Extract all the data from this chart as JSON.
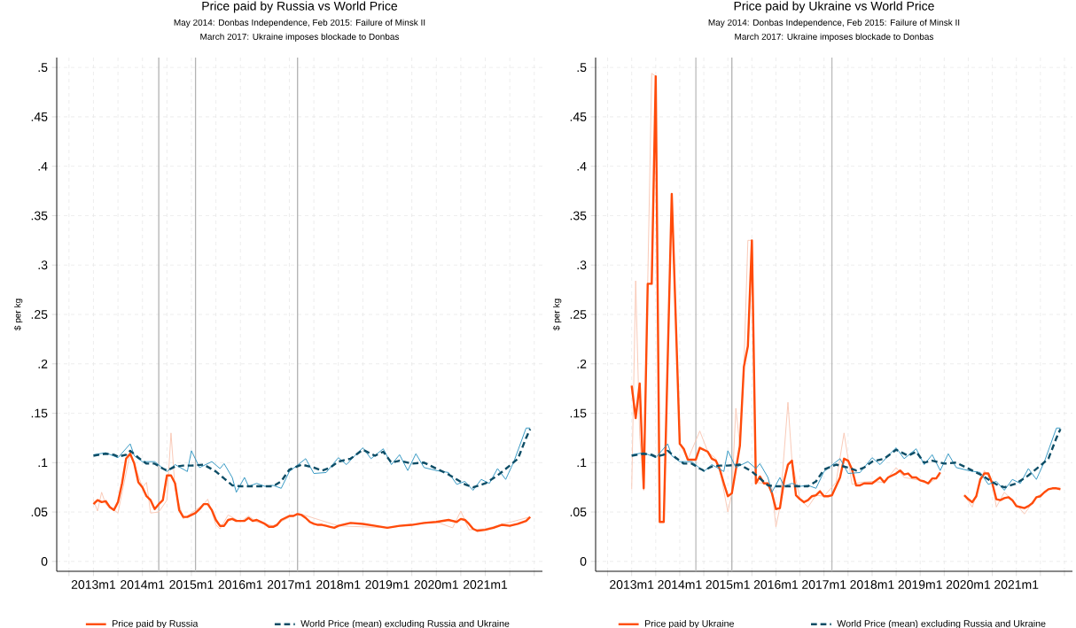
{
  "chart_data": [
    {
      "type": "line",
      "title": "Price paid by Russia vs World Price",
      "subtitle": "May 2014: Donbas Independence, Feb 2015: Failure of Minsk II",
      "annotations": [
        "March 2017: Ukraine imposes blockade to Donbas"
      ],
      "ylabel": "$ per kg",
      "xlim": [
        "2012-04",
        "2022-03"
      ],
      "ylim": [
        -0.01,
        0.51
      ],
      "xticks": [
        {
          "value": "2012-07",
          "label": null
        },
        {
          "value": "2013-01",
          "label": "2013m1"
        },
        {
          "value": "2013-07",
          "label": null
        },
        {
          "value": "2014-01",
          "label": "2014m1"
        },
        {
          "value": "2014-07",
          "label": null
        },
        {
          "value": "2015-01",
          "label": "2015m1"
        },
        {
          "value": "2015-07",
          "label": null
        },
        {
          "value": "2016-01",
          "label": "2016m1"
        },
        {
          "value": "2016-07",
          "label": null
        },
        {
          "value": "2017-01",
          "label": "2017m1"
        },
        {
          "value": "2017-07",
          "label": null
        },
        {
          "value": "2018-01",
          "label": "2018m1"
        },
        {
          "value": "2018-07",
          "label": null
        },
        {
          "value": "2019-01",
          "label": "2019m1"
        },
        {
          "value": "2019-07",
          "label": null
        },
        {
          "value": "2020-01",
          "label": "2020m1"
        },
        {
          "value": "2020-07",
          "label": null
        },
        {
          "value": "2021-01",
          "label": "2021m1"
        },
        {
          "value": "2021-07",
          "label": null
        },
        {
          "value": "2022-01",
          "label": null
        }
      ],
      "yticks": [
        0,
        {
          "value": 0.05,
          "label": ".05"
        },
        {
          "value": 0.1,
          "label": ".1"
        },
        {
          "value": 0.15,
          "label": ".15"
        },
        {
          "value": 0.2,
          "label": ".2"
        },
        {
          "value": 0.25,
          "label": ".25"
        },
        {
          "value": 0.3,
          "label": ".3"
        },
        {
          "value": 0.35,
          "label": ".35"
        },
        {
          "value": 0.4,
          "label": ".4"
        },
        {
          "value": 0.45,
          "label": ".45"
        },
        {
          "value": 0.5,
          "label": ".5"
        }
      ],
      "grid": true,
      "legend": "bottom",
      "ref_lines": [
        {
          "axis": "x",
          "value": "2014-05",
          "color": "#b4b4b4"
        },
        {
          "axis": "x",
          "value": "2015-02",
          "color": "#b4b4b4"
        },
        {
          "axis": "x",
          "value": "2017-03",
          "color": "#b4b4b4"
        }
      ],
      "series": [
        {
          "color": "#f9c6b3",
          "line_style": "solid",
          "x": [
            "2013-01",
            "2013-02",
            "2013-03",
            "2013-04",
            "2013-07",
            "2013-10",
            "2014-01",
            "2014-02",
            "2014-03",
            "2014-05",
            "2014-07",
            "2014-08",
            "2014-09",
            "2014-11",
            "2015-01",
            "2015-04",
            "2015-05",
            "2015-07",
            "2015-08",
            "2015-10",
            "2016-01",
            "2016-03",
            "2016-05",
            "2016-09",
            "2017-03",
            "2018-01",
            "2019-01",
            "2020-01",
            "2020-05",
            "2020-07",
            "2020-09",
            "2021-01",
            "2021-12"
          ],
          "values": [
            0.062,
            0.051,
            0.07,
            0.058,
            0.049,
            0.11,
            0.075,
            0.08,
            0.049,
            0.05,
            0.062,
            0.13,
            0.073,
            0.043,
            0.049,
            0.058,
            0.063,
            0.037,
            0.033,
            0.047,
            0.04,
            0.046,
            0.04,
            0.036,
            0.049,
            0.036,
            0.034,
            0.04,
            0.034,
            0.051,
            0.032,
            0.033,
            0.045
          ]
        },
        {
          "name": "Price paid by Russia",
          "color": "#ff4b0a",
          "line_style": "solid",
          "x": [
            "2013-01",
            "2013-02",
            "2013-03",
            "2013-04",
            "2013-05",
            "2013-06",
            "2013-07",
            "2013-08",
            "2013-09",
            "2013-10",
            "2013-11",
            "2013-12",
            "2014-01",
            "2014-02",
            "2014-03",
            "2014-04",
            "2014-05",
            "2014-06",
            "2014-07",
            "2014-08",
            "2014-09",
            "2014-10",
            "2014-11",
            "2014-12",
            "2015-01",
            "2015-02",
            "2015-03",
            "2015-04",
            "2015-05",
            "2015-06",
            "2015-07",
            "2015-08",
            "2015-09",
            "2015-10",
            "2015-11",
            "2015-12",
            "2016-01",
            "2016-02",
            "2016-03",
            "2016-04",
            "2016-05",
            "2016-06",
            "2016-07",
            "2016-08",
            "2016-09",
            "2016-10",
            "2016-11",
            "2016-12",
            "2017-01",
            "2017-02",
            "2017-03",
            "2017-04",
            "2017-05",
            "2017-06",
            "2017-07",
            "2017-08",
            "2017-09",
            "2017-10",
            "2017-11",
            "2017-12",
            "2018-01",
            "2018-04",
            "2018-07",
            "2018-10",
            "2019-01",
            "2019-04",
            "2019-07",
            "2019-10",
            "2020-01",
            "2020-04",
            "2020-06",
            "2020-07",
            "2020-08",
            "2020-09",
            "2020-10",
            "2020-11",
            "2021-01",
            "2021-03",
            "2021-05",
            "2021-07",
            "2021-09",
            "2021-11",
            "2021-12"
          ],
          "values": [
            0.058,
            0.062,
            0.06,
            0.061,
            0.055,
            0.052,
            0.06,
            0.079,
            0.104,
            0.109,
            0.099,
            0.08,
            0.075,
            0.066,
            0.062,
            0.053,
            0.058,
            0.062,
            0.087,
            0.087,
            0.079,
            0.052,
            0.045,
            0.045,
            0.047,
            0.049,
            0.053,
            0.058,
            0.058,
            0.052,
            0.042,
            0.036,
            0.036,
            0.042,
            0.043,
            0.041,
            0.041,
            0.041,
            0.044,
            0.041,
            0.042,
            0.04,
            0.038,
            0.035,
            0.035,
            0.037,
            0.042,
            0.044,
            0.046,
            0.046,
            0.048,
            0.047,
            0.044,
            0.04,
            0.038,
            0.037,
            0.037,
            0.036,
            0.035,
            0.034,
            0.036,
            0.039,
            0.038,
            0.036,
            0.034,
            0.036,
            0.037,
            0.039,
            0.04,
            0.042,
            0.04,
            0.043,
            0.042,
            0.038,
            0.033,
            0.031,
            0.032,
            0.034,
            0.037,
            0.036,
            0.038,
            0.041,
            0.045
          ]
        },
        {
          "color": "#2a92c0",
          "line_style": "solid",
          "x": [
            "2013-01",
            "2013-04",
            "2013-07",
            "2013-10",
            "2013-11",
            "2014-01",
            "2014-04",
            "2014-07",
            "2014-09",
            "2014-12",
            "2015-01",
            "2015-03",
            "2015-06",
            "2015-08",
            "2015-09",
            "2015-11",
            "2015-12",
            "2016-02",
            "2016-03",
            "2016-05",
            "2016-07",
            "2016-09",
            "2016-11",
            "2017-01",
            "2017-05",
            "2017-07",
            "2017-10",
            "2018-01",
            "2018-03",
            "2018-05",
            "2018-07",
            "2018-09",
            "2018-12",
            "2019-02",
            "2019-04",
            "2019-06",
            "2019-08",
            "2019-10",
            "2020-01",
            "2020-04",
            "2020-06",
            "2020-08",
            "2020-10",
            "2020-12",
            "2021-02",
            "2021-04",
            "2021-06",
            "2021-08",
            "2021-11",
            "2021-12"
          ],
          "values": [
            0.108,
            0.11,
            0.105,
            0.119,
            0.107,
            0.101,
            0.101,
            0.091,
            0.098,
            0.091,
            0.112,
            0.095,
            0.101,
            0.094,
            0.099,
            0.085,
            0.07,
            0.085,
            0.076,
            0.079,
            0.076,
            0.077,
            0.074,
            0.091,
            0.104,
            0.089,
            0.09,
            0.105,
            0.098,
            0.107,
            0.115,
            0.104,
            0.114,
            0.098,
            0.108,
            0.092,
            0.109,
            0.095,
            0.092,
            0.09,
            0.078,
            0.081,
            0.072,
            0.083,
            0.079,
            0.094,
            0.083,
            0.101,
            0.135,
            0.135
          ]
        },
        {
          "name": "World Price (mean) excluding Russia and Ukraine",
          "color": "#0d4d66",
          "line_style": "dashed",
          "x": [
            "2013-01",
            "2013-04",
            "2013-06",
            "2013-07",
            "2013-09",
            "2013-10",
            "2013-12",
            "2014-02",
            "2014-04",
            "2014-06",
            "2014-07",
            "2014-09",
            "2014-11",
            "2015-01",
            "2015-04",
            "2015-07",
            "2015-09",
            "2015-11",
            "2016-01",
            "2016-05",
            "2016-09",
            "2016-11",
            "2017-01",
            "2017-04",
            "2017-07",
            "2017-09",
            "2017-11",
            "2018-01",
            "2018-04",
            "2018-07",
            "2018-10",
            "2018-12",
            "2019-02",
            "2019-04",
            "2019-07",
            "2019-10",
            "2020-01",
            "2020-04",
            "2020-06",
            "2020-08",
            "2020-10",
            "2021-01",
            "2021-04",
            "2021-07",
            "2021-09",
            "2021-11",
            "2021-12"
          ],
          "values": [
            0.107,
            0.109,
            0.108,
            0.106,
            0.108,
            0.112,
            0.105,
            0.099,
            0.099,
            0.094,
            0.092,
            0.096,
            0.097,
            0.097,
            0.098,
            0.091,
            0.084,
            0.077,
            0.076,
            0.076,
            0.076,
            0.081,
            0.093,
            0.098,
            0.095,
            0.092,
            0.095,
            0.101,
            0.104,
            0.113,
            0.107,
            0.111,
            0.1,
            0.102,
            0.099,
            0.1,
            0.094,
            0.088,
            0.083,
            0.078,
            0.075,
            0.079,
            0.087,
            0.097,
            0.104,
            0.125,
            0.134
          ]
        }
      ]
    },
    {
      "type": "line",
      "title": "Price paid by Ukraine vs World Price",
      "subtitle": "May 2014: Donbas Independence, Feb 2015: Failure of Minsk II",
      "annotations": [
        "March 2017: Ukraine imposes blockade to Donbas"
      ],
      "ylabel": "$ per kg",
      "xlim": [
        "2012-04",
        "2022-03"
      ],
      "ylim": [
        -0.01,
        0.51
      ],
      "xticks": [
        {
          "value": "2012-07",
          "label": null
        },
        {
          "value": "2013-01",
          "label": "2013m1"
        },
        {
          "value": "2013-07",
          "label": null
        },
        {
          "value": "2014-01",
          "label": "2014m1"
        },
        {
          "value": "2014-07",
          "label": null
        },
        {
          "value": "2015-01",
          "label": "2015m1"
        },
        {
          "value": "2015-07",
          "label": null
        },
        {
          "value": "2016-01",
          "label": "2016m1"
        },
        {
          "value": "2016-07",
          "label": null
        },
        {
          "value": "2017-01",
          "label": "2017m1"
        },
        {
          "value": "2017-07",
          "label": null
        },
        {
          "value": "2018-01",
          "label": "2018m1"
        },
        {
          "value": "2018-07",
          "label": null
        },
        {
          "value": "2019-01",
          "label": "2019m1"
        },
        {
          "value": "2019-07",
          "label": null
        },
        {
          "value": "2020-01",
          "label": "2020m1"
        },
        {
          "value": "2020-07",
          "label": null
        },
        {
          "value": "2021-01",
          "label": "2021m1"
        },
        {
          "value": "2021-07",
          "label": null
        },
        {
          "value": "2022-01",
          "label": null
        }
      ],
      "yticks": [
        0,
        {
          "value": 0.05,
          "label": ".05"
        },
        {
          "value": 0.1,
          "label": ".1"
        },
        {
          "value": 0.15,
          "label": ".15"
        },
        {
          "value": 0.2,
          "label": ".2"
        },
        {
          "value": 0.25,
          "label": ".25"
        },
        {
          "value": 0.3,
          "label": ".3"
        },
        {
          "value": 0.35,
          "label": ".35"
        },
        {
          "value": 0.4,
          "label": ".4"
        },
        {
          "value": 0.45,
          "label": ".45"
        },
        {
          "value": 0.5,
          "label": ".5"
        }
      ],
      "grid": true,
      "legend": "bottom",
      "ref_lines": [
        {
          "axis": "x",
          "value": "2014-05",
          "color": "#b4b4b4"
        },
        {
          "axis": "x",
          "value": "2015-02",
          "color": "#b4b4b4"
        },
        {
          "axis": "x",
          "value": "2017-03",
          "color": "#b4b4b4"
        }
      ],
      "series": [
        {
          "color": "#f9c6b3",
          "line_style": "solid",
          "x": [
            "2013-01",
            "2013-02",
            "2013-03",
            "2013-04",
            "2013-05",
            "2013-06",
            "2013-07",
            "2013-08",
            "2013-09",
            "2013-11",
            "2014-01",
            "2014-03",
            "2014-06",
            "2014-08",
            "2014-10",
            "2014-11",
            "2015-01",
            "2015-02",
            "2015-03",
            "2015-04",
            "2015-05",
            "2015-06",
            "2015-07",
            "2015-08",
            "2015-10",
            "2015-12",
            "2016-01",
            "2016-02",
            "2016-04",
            "2016-05",
            "2016-07",
            "2016-09",
            "2016-11",
            "2017-01",
            "2017-04",
            "2017-06",
            "2017-08",
            "2017-10",
            "2018-01",
            "2018-04",
            "2018-07",
            "2018-09",
            "2019-01",
            "2019-03",
            "2019-06",
            "2019-09",
            "2019-12",
            "2020-02",
            "2020-05",
            "2020-07",
            "2020-08",
            "2020-10",
            "2021-01",
            "2021-03",
            "2021-06",
            "2021-09",
            "2021-12"
          ],
          "values": [
            0.073,
            0.284,
            0.127,
            0.072,
            0.281,
            0.494,
            0.491,
            0.04,
            0.04,
            0.372,
            0.119,
            0.103,
            0.132,
            0.111,
            0.104,
            0.093,
            0.05,
            0.069,
            0.155,
            0.117,
            0.197,
            0.325,
            0.325,
            0.08,
            0.079,
            0.075,
            0.035,
            0.055,
            0.161,
            0.102,
            0.063,
            0.055,
            0.067,
            0.066,
            0.08,
            0.13,
            0.078,
            0.08,
            0.081,
            0.08,
            0.095,
            0.085,
            0.082,
            0.078,
            0.087,
            null,
            0.067,
            0.055,
            0.092,
            0.08,
            0.055,
            0.07,
            0.058,
            0.048,
            0.065,
            0.073,
            0.075
          ]
        },
        {
          "name": "Price paid by Ukraine",
          "color": "#ff4b0a",
          "line_style": "solid",
          "x": [
            "2013-01",
            "2013-02",
            "2013-03",
            "2013-04",
            "2013-05",
            "2013-06",
            "2013-07",
            "2013-08",
            "2013-09",
            "2013-11",
            "2014-01",
            "2014-02",
            "2014-03",
            "2014-05",
            "2014-06",
            "2014-08",
            "2014-09",
            "2014-10",
            "2014-11",
            "2014-12",
            "2015-01",
            "2015-02",
            "2015-03",
            "2015-04",
            "2015-05",
            "2015-06",
            "2015-07",
            "2015-08",
            "2015-09",
            "2015-10",
            "2015-11",
            "2015-12",
            "2016-01",
            "2016-02",
            "2016-03",
            "2016-04",
            "2016-05",
            "2016-06",
            "2016-07",
            "2016-08",
            "2016-09",
            "2016-10",
            "2016-11",
            "2016-12",
            "2017-01",
            "2017-02",
            "2017-03",
            "2017-04",
            "2017-05",
            "2017-06",
            "2017-07",
            "2017-08",
            "2017-09",
            "2017-10",
            "2017-11",
            "2018-01",
            "2018-03",
            "2018-04",
            "2018-05",
            "2018-07",
            "2018-08",
            "2018-09",
            "2018-10",
            "2018-11",
            "2018-12",
            "2019-01",
            "2019-02",
            "2019-03",
            "2019-04",
            "2019-05",
            "2019-06",
            "2019-09",
            "2019-12",
            "2020-01",
            "2020-02",
            "2020-03",
            "2020-04",
            "2020-05",
            "2020-06",
            "2020-07",
            "2020-08",
            "2020-09",
            "2020-10",
            "2020-11",
            "2020-12",
            "2021-01",
            "2021-02",
            "2021-03",
            "2021-04",
            "2021-05",
            "2021-06",
            "2021-07",
            "2021-08",
            "2021-09",
            "2021-10",
            "2021-11",
            "2021-12"
          ],
          "values": [
            0.178,
            0.145,
            0.18,
            0.074,
            0.281,
            0.281,
            0.491,
            0.04,
            0.04,
            0.372,
            0.119,
            0.114,
            0.103,
            0.103,
            0.115,
            0.111,
            0.104,
            0.102,
            0.093,
            0.079,
            0.066,
            0.069,
            0.093,
            0.117,
            0.197,
            0.218,
            0.325,
            0.079,
            0.086,
            0.079,
            0.079,
            0.069,
            0.053,
            0.054,
            0.081,
            0.098,
            0.102,
            0.067,
            0.063,
            0.06,
            0.062,
            0.066,
            0.067,
            0.071,
            0.066,
            0.066,
            0.067,
            0.076,
            0.085,
            0.104,
            0.102,
            0.093,
            0.077,
            0.077,
            0.079,
            0.079,
            0.085,
            0.08,
            0.085,
            0.089,
            0.092,
            0.088,
            0.089,
            0.085,
            0.085,
            0.082,
            0.081,
            0.079,
            0.084,
            0.084,
            0.09,
            null,
            0.067,
            0.063,
            0.06,
            0.066,
            0.083,
            0.089,
            0.089,
            0.079,
            0.063,
            0.062,
            0.064,
            0.065,
            0.062,
            0.056,
            0.055,
            0.054,
            0.056,
            0.059,
            0.065,
            0.066,
            0.07,
            0.073,
            0.074,
            0.074,
            0.073
          ]
        },
        {
          "color": "#2a92c0",
          "line_style": "solid",
          "x": [
            "2013-01",
            "2013-04",
            "2013-07",
            "2013-10",
            "2013-11",
            "2014-01",
            "2014-04",
            "2014-07",
            "2014-09",
            "2014-12",
            "2015-01",
            "2015-03",
            "2015-06",
            "2015-08",
            "2015-09",
            "2015-11",
            "2015-12",
            "2016-02",
            "2016-03",
            "2016-05",
            "2016-07",
            "2016-09",
            "2016-11",
            "2017-01",
            "2017-05",
            "2017-07",
            "2017-10",
            "2018-01",
            "2018-03",
            "2018-05",
            "2018-07",
            "2018-09",
            "2018-12",
            "2019-02",
            "2019-04",
            "2019-06",
            "2019-08",
            "2019-10",
            "2020-01",
            "2020-04",
            "2020-06",
            "2020-08",
            "2020-10",
            "2020-12",
            "2021-02",
            "2021-04",
            "2021-06",
            "2021-08",
            "2021-11",
            "2021-12"
          ],
          "values": [
            0.108,
            0.11,
            0.105,
            0.119,
            0.107,
            0.101,
            0.101,
            0.091,
            0.098,
            0.091,
            0.112,
            0.095,
            0.101,
            0.094,
            0.099,
            0.085,
            0.07,
            0.085,
            0.076,
            0.079,
            0.076,
            0.077,
            0.074,
            0.091,
            0.104,
            0.089,
            0.09,
            0.105,
            0.098,
            0.107,
            0.115,
            0.104,
            0.114,
            0.098,
            0.108,
            0.092,
            0.109,
            0.095,
            0.092,
            0.09,
            0.078,
            0.081,
            0.072,
            0.083,
            0.079,
            0.094,
            0.083,
            0.101,
            0.135,
            0.135
          ]
        },
        {
          "name": "World Price (mean) excluding Russia and Ukraine",
          "color": "#0d4d66",
          "line_style": "dashed",
          "x": [
            "2013-01",
            "2013-04",
            "2013-06",
            "2013-07",
            "2013-09",
            "2013-10",
            "2013-12",
            "2014-02",
            "2014-04",
            "2014-06",
            "2014-07",
            "2014-09",
            "2014-11",
            "2015-01",
            "2015-04",
            "2015-07",
            "2015-09",
            "2015-11",
            "2016-01",
            "2016-05",
            "2016-09",
            "2016-11",
            "2017-01",
            "2017-04",
            "2017-07",
            "2017-09",
            "2017-11",
            "2018-01",
            "2018-04",
            "2018-07",
            "2018-10",
            "2018-12",
            "2019-02",
            "2019-04",
            "2019-07",
            "2019-10",
            "2020-01",
            "2020-04",
            "2020-06",
            "2020-08",
            "2020-10",
            "2021-01",
            "2021-04",
            "2021-07",
            "2021-09",
            "2021-11",
            "2021-12"
          ],
          "values": [
            0.107,
            0.109,
            0.108,
            0.106,
            0.108,
            0.112,
            0.105,
            0.099,
            0.099,
            0.094,
            0.092,
            0.096,
            0.097,
            0.097,
            0.098,
            0.091,
            0.084,
            0.077,
            0.076,
            0.076,
            0.076,
            0.081,
            0.093,
            0.098,
            0.095,
            0.092,
            0.095,
            0.101,
            0.104,
            0.113,
            0.107,
            0.111,
            0.1,
            0.102,
            0.099,
            0.1,
            0.094,
            0.088,
            0.083,
            0.078,
            0.075,
            0.079,
            0.087,
            0.097,
            0.104,
            0.125,
            0.134
          ]
        }
      ]
    }
  ]
}
